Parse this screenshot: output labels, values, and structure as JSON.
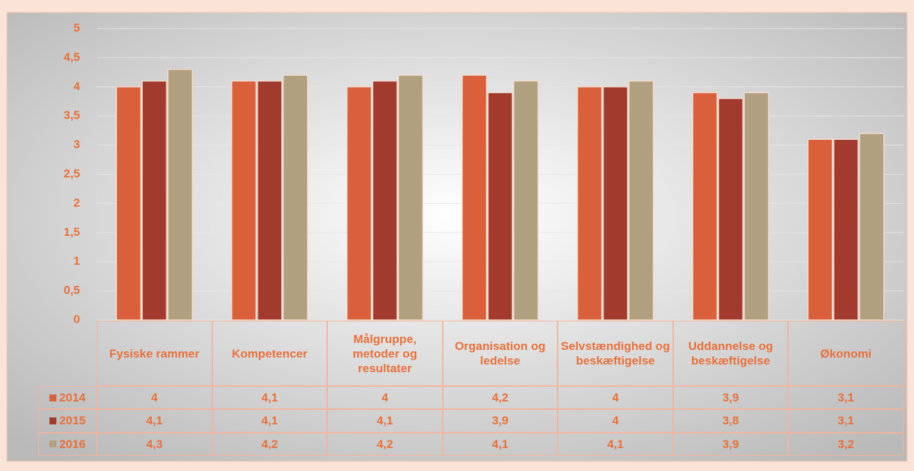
{
  "chart_data": {
    "type": "bar",
    "categories": [
      "Fysiske rammer",
      "Kompetencer",
      "Målgruppe, metoder og resultater",
      "Organisation og ledelse",
      "Selvstændighed og beskæftigelse",
      "Uddannelse og beskæftigelse",
      "Økonomi"
    ],
    "series": [
      {
        "name": "2014",
        "color": "#d9603b",
        "values": [
          4,
          4.1,
          4,
          4.2,
          4,
          3.9,
          3.1
        ],
        "value_labels": [
          "4",
          "4,1",
          "4",
          "4,2",
          "4",
          "3,9",
          "3,1"
        ]
      },
      {
        "name": "2015",
        "color": "#a23a2e",
        "values": [
          4.1,
          4.1,
          4.1,
          3.9,
          4,
          3.8,
          3.1
        ],
        "value_labels": [
          "4,1",
          "4,1",
          "4,1",
          "3,9",
          "4",
          "3,8",
          "3,1"
        ]
      },
      {
        "name": "2016",
        "color": "#b1a07f",
        "values": [
          4.3,
          4.2,
          4.2,
          4.1,
          4.1,
          3.9,
          3.2
        ],
        "value_labels": [
          "4,3",
          "4,2",
          "4,2",
          "4,1",
          "4,1",
          "3,9",
          "3,2"
        ]
      }
    ],
    "ylim": [
      0,
      5
    ],
    "yticks": [
      0,
      {
        "value": 0.5,
        "label": "0,5"
      },
      1,
      {
        "value": 1.5,
        "label": "1,5"
      },
      2,
      {
        "value": 2.5,
        "label": "2,5"
      },
      3,
      {
        "value": 3.5,
        "label": "3,5"
      },
      4,
      {
        "value": 4.5,
        "label": "4,5"
      },
      5
    ],
    "grid": true
  }
}
